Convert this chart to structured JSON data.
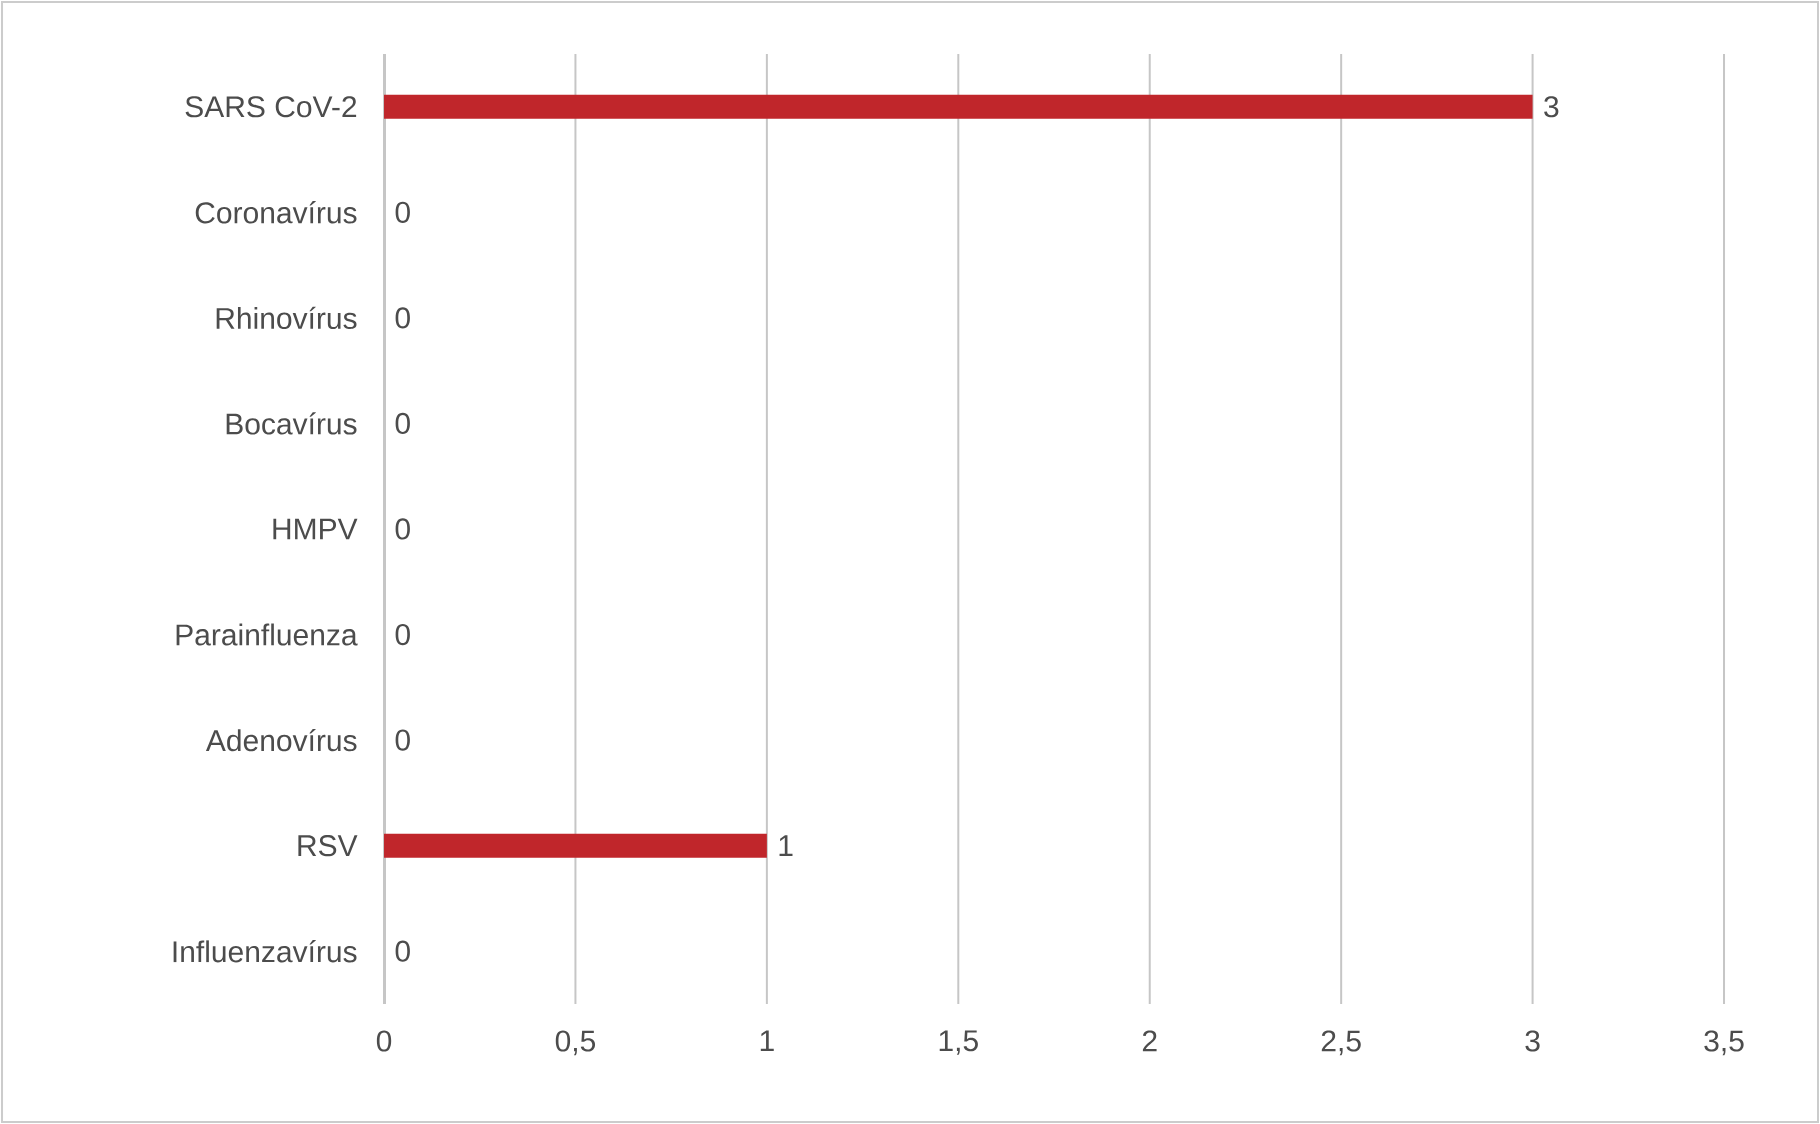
{
  "chart_data": {
    "type": "bar",
    "orientation": "horizontal",
    "categories": [
      "SARS CoV-2",
      "Coronavírus",
      "Rhinovírus",
      "Bocavírus",
      "HMPV",
      "Parainfluenza",
      "Adenovírus",
      "RSV",
      "Influenzavírus"
    ],
    "values": [
      3,
      0,
      0,
      0,
      0,
      0,
      0,
      1,
      0
    ],
    "color": "#c0262b",
    "xlim": [
      0,
      3.5
    ],
    "xticks": [
      0,
      {
        "value": 0.5,
        "label": "0,5"
      },
      1,
      {
        "value": 1.5,
        "label": "1,5"
      },
      2,
      {
        "value": 2.5,
        "label": "2,5"
      },
      3,
      {
        "value": 3.5,
        "label": "3,5"
      }
    ],
    "grid": "x",
    "data_labels": true
  }
}
